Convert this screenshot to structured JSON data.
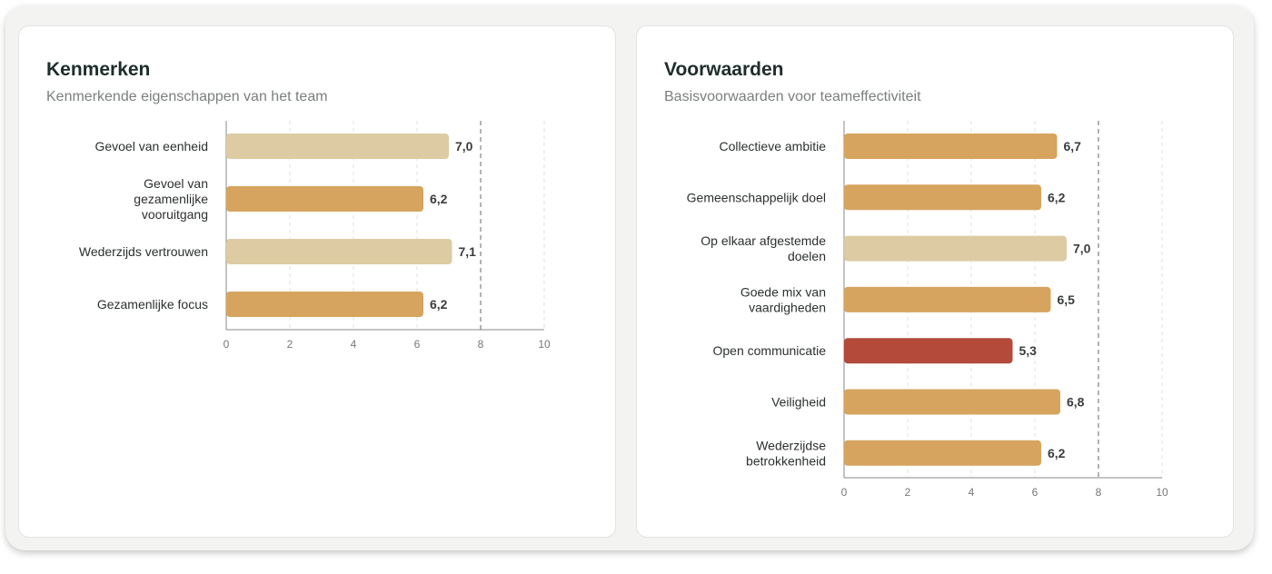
{
  "panels": [
    {
      "title": "Kenmerken",
      "subtitle": "Kenmerkende eigenschappen van het team",
      "chart_data": {
        "type": "bar",
        "orientation": "horizontal",
        "categories": [
          [
            "Gevoel van eenheid"
          ],
          [
            "Gevoel van",
            "gezamenlijke",
            "vooruitgang"
          ],
          [
            "Wederzijds vertrouwen"
          ],
          [
            "Gezamenlijke focus"
          ]
        ],
        "values": [
          7.0,
          6.2,
          7.1,
          6.2
        ],
        "value_labels": [
          "7,0",
          "6,2",
          "7,1",
          "6,2"
        ],
        "bar_colors": [
          "#dccba3",
          "#d6a45f",
          "#dccba3",
          "#d6a45f"
        ],
        "xlim": [
          0,
          10
        ],
        "xticks": [
          "0",
          "2",
          "4",
          "6",
          "8",
          "10"
        ],
        "reference_line": 8,
        "grid": "vertical dashed"
      }
    },
    {
      "title": "Voorwaarden",
      "subtitle": "Basisvoorwaarden voor teameffectiviteit",
      "chart_data": {
        "type": "bar",
        "orientation": "horizontal",
        "categories": [
          [
            "Collectieve ambitie"
          ],
          [
            "Gemeenschappelijk doel"
          ],
          [
            "Op elkaar afgestemde",
            "doelen"
          ],
          [
            "Goede mix van",
            "vaardigheden"
          ],
          [
            "Open communicatie"
          ],
          [
            "Veiligheid"
          ],
          [
            "Wederzijdse",
            "betrokkenheid"
          ]
        ],
        "values": [
          6.7,
          6.2,
          7.0,
          6.5,
          5.3,
          6.8,
          6.2
        ],
        "value_labels": [
          "6,7",
          "6,2",
          "7,0",
          "6,5",
          "5,3",
          "6,8",
          "6,2"
        ],
        "bar_colors": [
          "#d6a45f",
          "#d6a45f",
          "#dccba3",
          "#d6a45f",
          "#b34a3a",
          "#d6a45f",
          "#d6a45f"
        ],
        "xlim": [
          0,
          10
        ],
        "xticks": [
          "0",
          "2",
          "4",
          "6",
          "8",
          "10"
        ],
        "reference_line": 8,
        "grid": "vertical dashed"
      }
    }
  ]
}
